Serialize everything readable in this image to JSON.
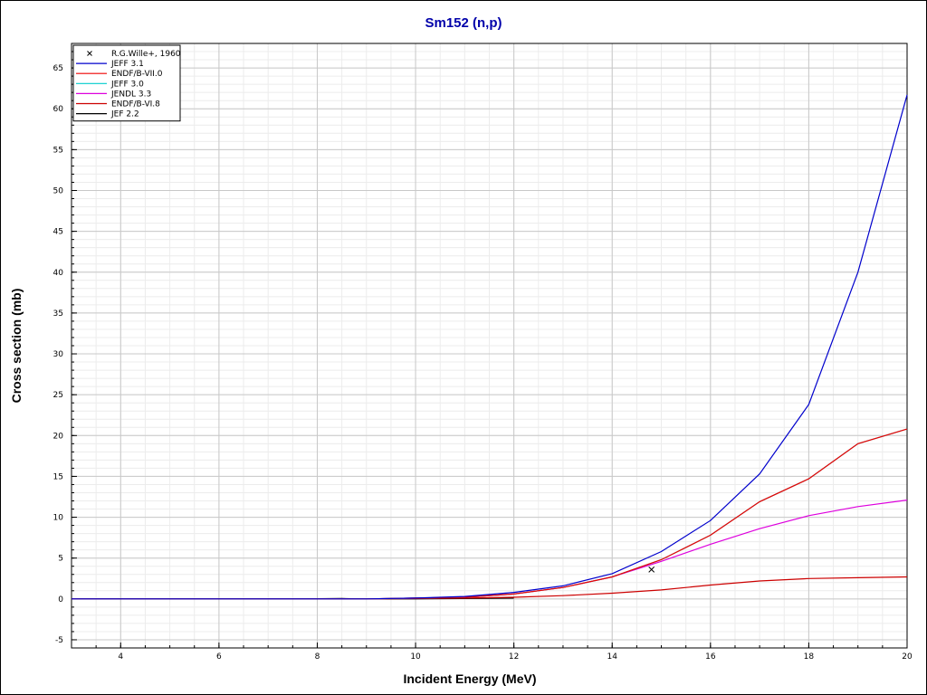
{
  "chart_data": {
    "type": "line",
    "title": "Sm152 (n,p)",
    "xlabel": "Incident Energy (MeV)",
    "ylabel": "Cross section (mb)",
    "xlim": [
      3,
      20
    ],
    "ylim": [
      -6,
      68
    ],
    "x_ticks": [
      4,
      6,
      8,
      10,
      12,
      14,
      16,
      18,
      20
    ],
    "y_ticks": [
      -5,
      0,
      5,
      10,
      15,
      20,
      25,
      30,
      35,
      40,
      45,
      50,
      55,
      60,
      65
    ],
    "grid": true,
    "legend_position": "top-left",
    "title_color": "#0000aa",
    "series": [
      {
        "name": "R.G.Wille+, 1960",
        "kind": "scatter",
        "marker": "x",
        "color": "#000000",
        "points": [
          [
            14.8,
            3.6
          ]
        ]
      },
      {
        "name": "JEFF 3.1",
        "kind": "line",
        "color": "#0000cc",
        "points": [
          [
            3,
            0
          ],
          [
            7.5,
            0
          ],
          [
            9,
            0
          ],
          [
            10,
            0.1
          ],
          [
            11,
            0.3
          ],
          [
            12,
            0.8
          ],
          [
            13,
            1.6
          ],
          [
            14,
            3.1
          ],
          [
            15,
            5.8
          ],
          [
            16,
            9.6
          ],
          [
            17,
            15.3
          ],
          [
            18,
            23.8
          ],
          [
            19,
            40.0
          ],
          [
            20,
            61.7
          ]
        ]
      },
      {
        "name": "ENDF/B-VII.0",
        "kind": "line",
        "color": "#ee0000",
        "points": [
          [
            3,
            0
          ],
          [
            7.5,
            0
          ],
          [
            9,
            0
          ],
          [
            10,
            0.1
          ],
          [
            11,
            0.2
          ],
          [
            12,
            0.6
          ],
          [
            13,
            1.4
          ],
          [
            14,
            2.7
          ],
          [
            15,
            4.8
          ],
          [
            16,
            7.8
          ],
          [
            17,
            11.9
          ],
          [
            18,
            14.7
          ],
          [
            19,
            19.0
          ],
          [
            20,
            20.8
          ]
        ]
      },
      {
        "name": "JEFF 3.0",
        "kind": "line",
        "color": "#00cccc",
        "points": [
          [
            3,
            0
          ],
          [
            7.5,
            0
          ],
          [
            9,
            0
          ],
          [
            10,
            0.1
          ],
          [
            11,
            0.2
          ],
          [
            12,
            0.6
          ],
          [
            13,
            1.4
          ],
          [
            14,
            2.7
          ],
          [
            15,
            4.8
          ],
          [
            16,
            7.8
          ],
          [
            17,
            11.9
          ],
          [
            18,
            14.7
          ],
          [
            19,
            19.0
          ],
          [
            20,
            20.8
          ]
        ]
      },
      {
        "name": "JENDL 3.3",
        "kind": "line",
        "color": "#dd00dd",
        "points": [
          [
            3,
            0
          ],
          [
            7.5,
            0
          ],
          [
            9,
            0
          ],
          [
            10,
            0.1
          ],
          [
            11,
            0.2
          ],
          [
            12,
            0.6
          ],
          [
            13,
            1.4
          ],
          [
            14,
            2.7
          ],
          [
            15,
            4.6
          ],
          [
            16,
            6.7
          ],
          [
            17,
            8.6
          ],
          [
            18,
            10.2
          ],
          [
            19,
            11.3
          ],
          [
            20,
            12.1
          ]
        ]
      },
      {
        "name": "ENDF/B-VI.8",
        "kind": "line",
        "color": "#cc0000",
        "points": [
          [
            3,
            0
          ],
          [
            7.5,
            0
          ],
          [
            9,
            0
          ],
          [
            10,
            0.05
          ],
          [
            11,
            0.1
          ],
          [
            12,
            0.2
          ],
          [
            13,
            0.4
          ],
          [
            14,
            0.7
          ],
          [
            15,
            1.1
          ],
          [
            16,
            1.7
          ],
          [
            17,
            2.2
          ],
          [
            18,
            2.5
          ],
          [
            19,
            2.6
          ],
          [
            20,
            2.7
          ]
        ]
      },
      {
        "name": "JEF 2.2",
        "kind": "line",
        "color": "#000000",
        "points": [
          [
            3,
            0
          ],
          [
            7.5,
            0
          ],
          [
            8.5,
            0.05
          ],
          [
            9,
            0
          ],
          [
            10,
            0
          ],
          [
            11,
            0.05
          ],
          [
            12,
            0.1
          ]
        ]
      }
    ]
  }
}
